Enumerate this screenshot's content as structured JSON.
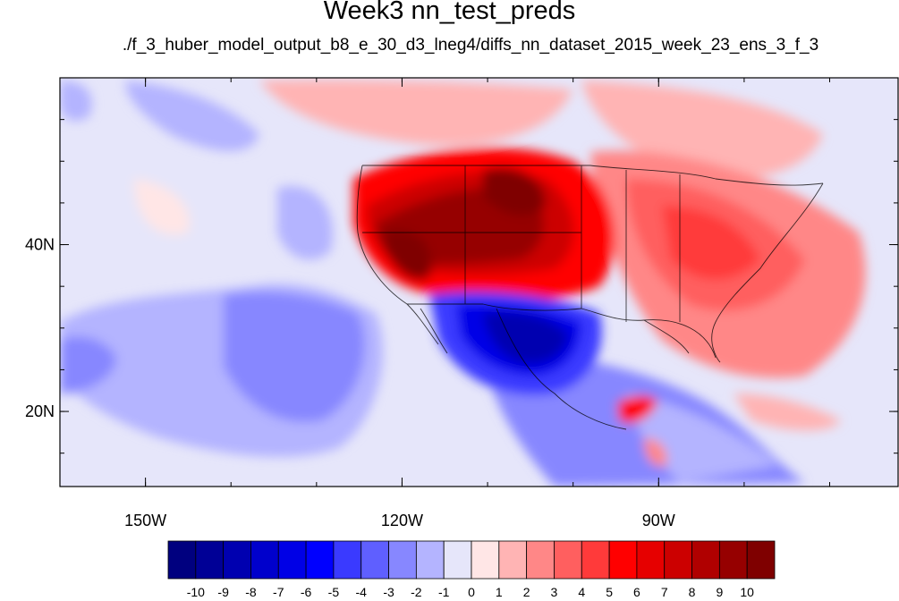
{
  "title": "Week3 nn_test_preds",
  "subtitle": "./f_3_huber_model_output_b8_e_30_d3_lneg4/diffs_nn_dataset_2015_week_23_ens_3_f_3",
  "map": {
    "projection": "cylindrical equidistant",
    "lon_range": [
      -160,
      -62
    ],
    "lat_range": [
      11,
      60
    ],
    "x_tick_labels": [
      {
        "lon": -150,
        "label": "150W"
      },
      {
        "lon": -120,
        "label": "120W"
      },
      {
        "lon": -90,
        "label": "90W"
      }
    ],
    "y_tick_labels": [
      {
        "lat": 40,
        "label": "40N"
      },
      {
        "lat": 20,
        "label": "20N"
      }
    ],
    "dominant_patterns": [
      "strong positive anomaly (8 to 10+) over western US and Great Plains",
      "moderate positive anomaly (2 to 6) over eastern US and western Atlantic",
      "strong negative anomaly (-6 to -10) over northern Mexico and Texas",
      "weak negative anomaly (-1 to -4) over eastern Pacific",
      "weak positive anomaly (1 to 3) over northeast Pacific"
    ]
  },
  "colorbar": {
    "levels": [
      "-10",
      "-9",
      "-8",
      "-7",
      "-6",
      "-5",
      "-4",
      "-3",
      "-2",
      "-1",
      "0",
      "1",
      "2",
      "3",
      "4",
      "5",
      "6",
      "7",
      "8",
      "9",
      "10"
    ],
    "colors": [
      "#00007f",
      "#000096",
      "#0000b0",
      "#0000cc",
      "#0000e6",
      "#0000ff",
      "#3a3aff",
      "#5f5fff",
      "#8787ff",
      "#b4b4ff",
      "#e6e6fa",
      "#ffe6e6",
      "#ffb4b4",
      "#ff8787",
      "#ff5f5f",
      "#ff3a3a",
      "#ff0000",
      "#e60000",
      "#cc0000",
      "#b00000",
      "#960000",
      "#7f0000"
    ]
  }
}
